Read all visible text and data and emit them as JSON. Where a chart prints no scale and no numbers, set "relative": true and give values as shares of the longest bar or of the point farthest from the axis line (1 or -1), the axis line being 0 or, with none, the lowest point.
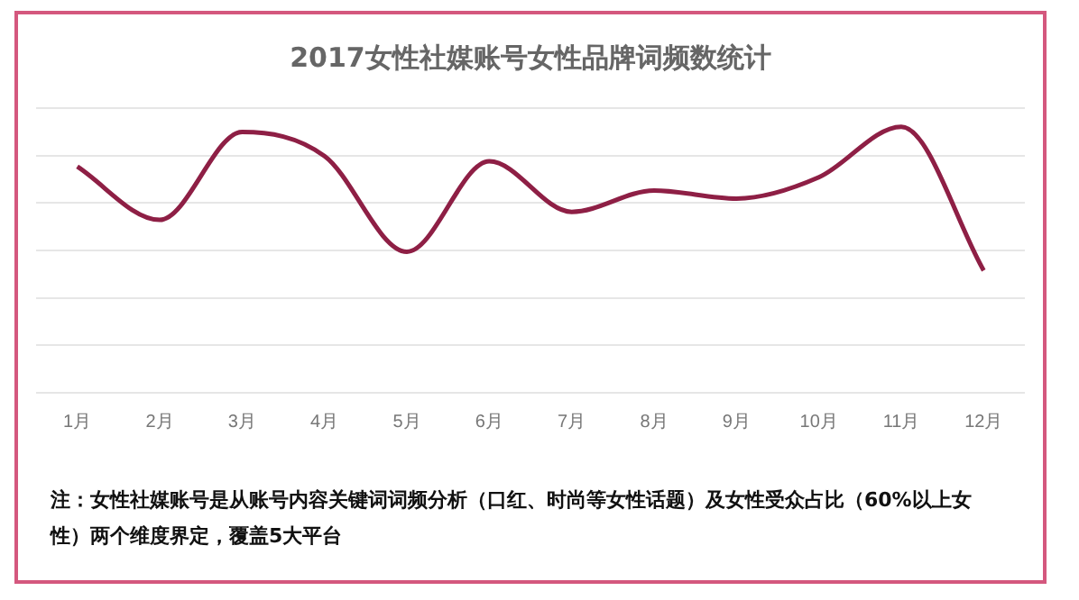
{
  "chart_data": {
    "type": "line",
    "title": "2017女性社媒账号女性品牌词频数统计",
    "categories": [
      "1月",
      "2月",
      "3月",
      "4月",
      "5月",
      "6月",
      "7月",
      "8月",
      "9月",
      "10月",
      "11月",
      "12月"
    ],
    "relative": true,
    "grid": "y",
    "marker": "none",
    "series": [
      {
        "color": "#8e1f45",
        "values": [
          0.85,
          0.65,
          0.98,
          0.89,
          0.53,
          0.87,
          0.68,
          0.76,
          0.73,
          0.81,
          1,
          0.46
        ]
      }
    ],
    "annotations": [
      "注：女性社媒账号是从账号内容关键词词频分析（口红、时尚等女性话题）及女性受众占比（60%以上女性）两个维度界定，覆盖5大平台"
    ]
  }
}
